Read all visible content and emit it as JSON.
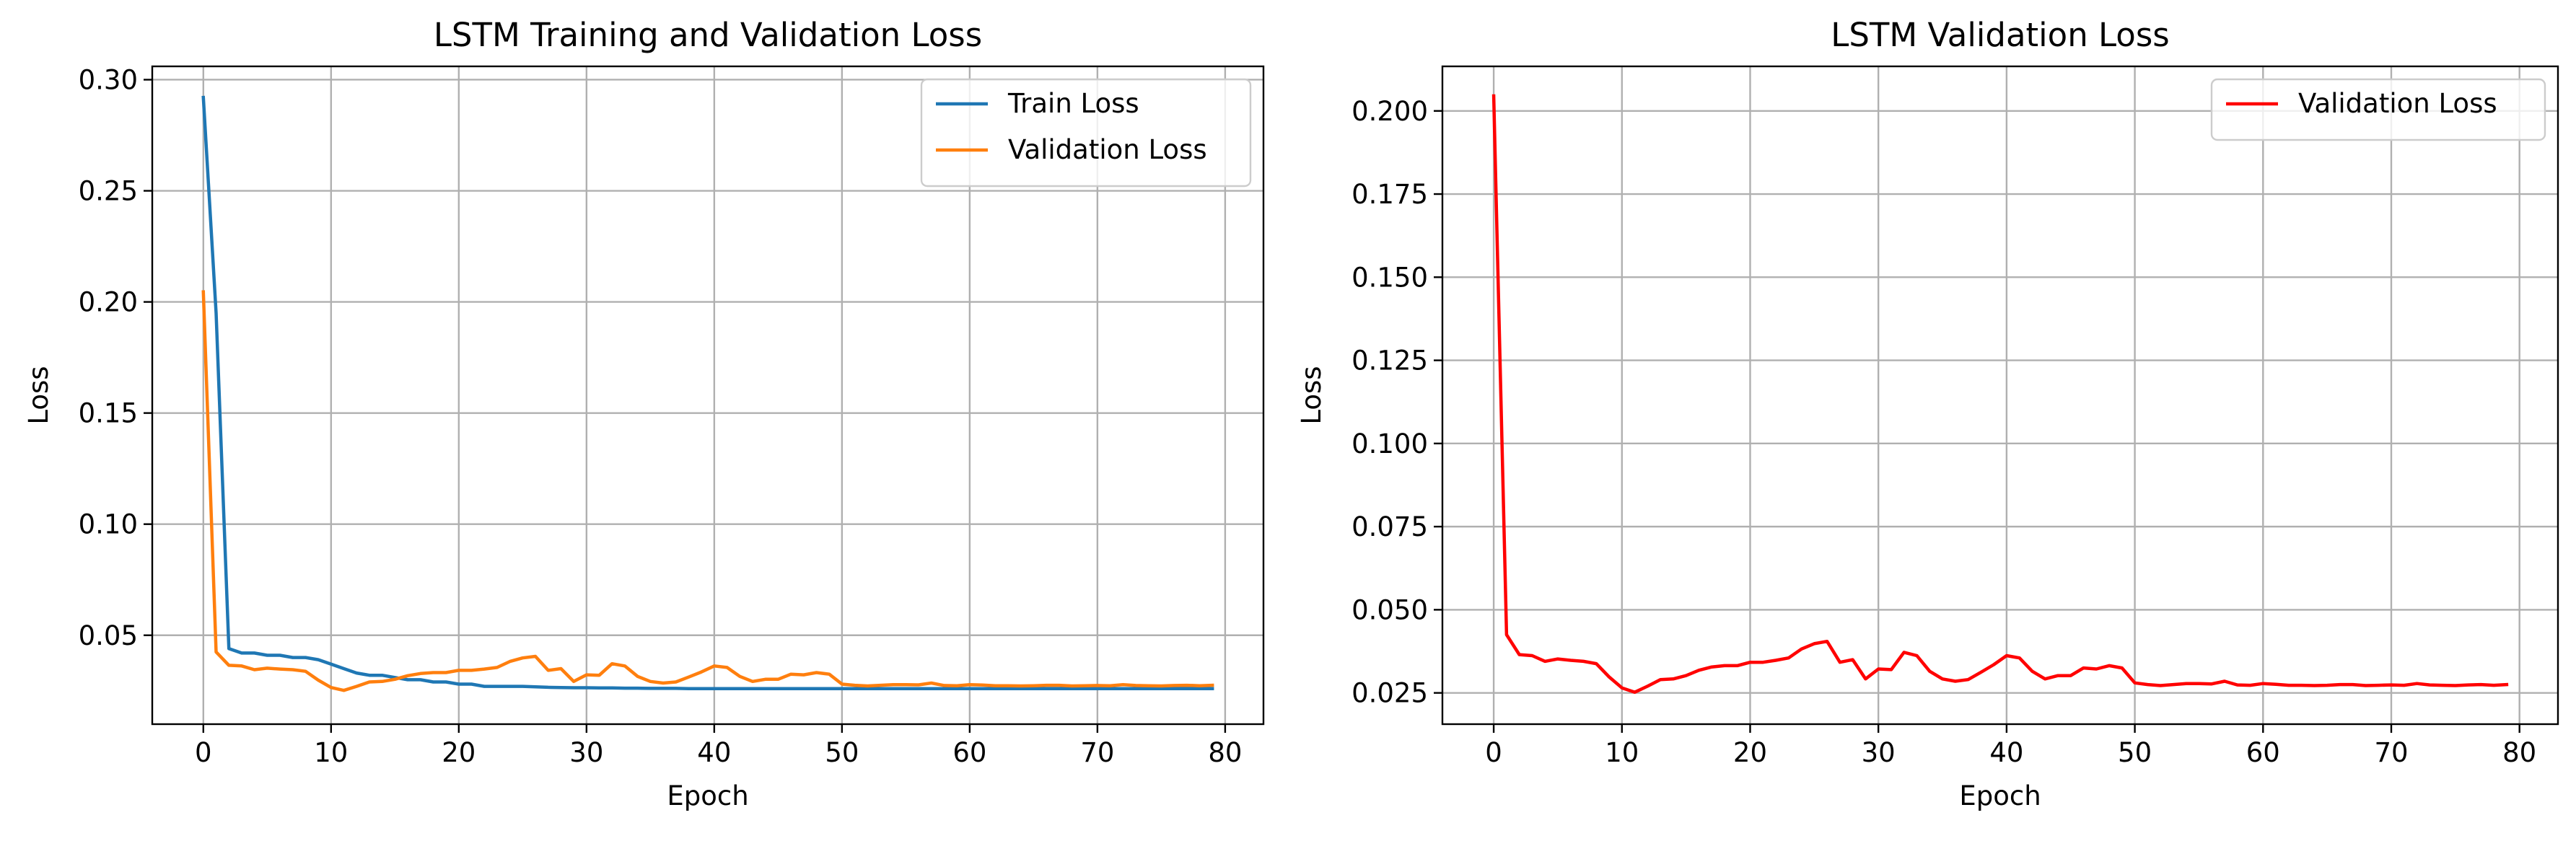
{
  "chart_data": [
    {
      "type": "line",
      "title": "LSTM Training and Validation Loss",
      "xlabel": "Epoch",
      "ylabel": "Loss",
      "xlim": [
        -4,
        83
      ],
      "ylim": [
        0.01,
        0.306
      ],
      "xticks": [
        0,
        10,
        20,
        30,
        40,
        50,
        60,
        70,
        80
      ],
      "yticks": [
        0.05,
        0.1,
        0.15,
        0.2,
        0.25,
        0.3
      ],
      "ytick_labels": [
        "0.05",
        "0.10",
        "0.15",
        "0.20",
        "0.25",
        "0.30"
      ],
      "grid": true,
      "legend_position": "top-right",
      "series": [
        {
          "name": "Train Loss",
          "color": "#1f77b4",
          "values": [
            0.292,
            0.195,
            0.044,
            0.042,
            0.042,
            0.041,
            0.041,
            0.04,
            0.04,
            0.039,
            0.037,
            0.035,
            0.033,
            0.032,
            0.032,
            0.031,
            0.03,
            0.03,
            0.029,
            0.029,
            0.028,
            0.028,
            0.027,
            0.027,
            0.027,
            0.027,
            0.0268,
            0.0266,
            0.0265,
            0.0264,
            0.0264,
            0.0263,
            0.0263,
            0.0262,
            0.0262,
            0.0261,
            0.0261,
            0.0261,
            0.026,
            0.026,
            0.026,
            0.026,
            0.026,
            0.026,
            0.026,
            0.026,
            0.026,
            0.026,
            0.026,
            0.026,
            0.026,
            0.026,
            0.026,
            0.026,
            0.026,
            0.026,
            0.026,
            0.026,
            0.026,
            0.026,
            0.026,
            0.026,
            0.026,
            0.026,
            0.026,
            0.026,
            0.026,
            0.026,
            0.026,
            0.026,
            0.026,
            0.026,
            0.026,
            0.026,
            0.026,
            0.026,
            0.026,
            0.026,
            0.026,
            0.026
          ]
        },
        {
          "name": "Validation Loss",
          "color": "#ff7f0e",
          "values": [
            0.2045,
            0.0425,
            0.0365,
            0.0362,
            0.0345,
            0.0352,
            0.0348,
            0.0345,
            0.0338,
            0.0298,
            0.0265,
            0.0252,
            0.027,
            0.029,
            0.0292,
            0.0302,
            0.0318,
            0.0328,
            0.0332,
            0.0332,
            0.0342,
            0.0342,
            0.0348,
            0.0355,
            0.0382,
            0.0398,
            0.0405,
            0.0342,
            0.035,
            0.0292,
            0.0322,
            0.032,
            0.0372,
            0.0362,
            0.0315,
            0.0292,
            0.0285,
            0.029,
            0.0312,
            0.0335,
            0.0362,
            0.0355,
            0.0315,
            0.0292,
            0.0302,
            0.0302,
            0.0325,
            0.0322,
            0.0332,
            0.0325,
            0.028,
            0.0275,
            0.0272,
            0.0275,
            0.0278,
            0.0278,
            0.0277,
            0.0285,
            0.0274,
            0.0273,
            0.0278,
            0.0276,
            0.0273,
            0.0273,
            0.0272,
            0.0273,
            0.0275,
            0.0275,
            0.0272,
            0.0273,
            0.0274,
            0.0273,
            0.0278,
            0.0274,
            0.0273,
            0.0272,
            0.0274,
            0.0275,
            0.0273,
            0.0275
          ]
        }
      ]
    },
    {
      "type": "line",
      "title": "LSTM Validation Loss",
      "xlabel": "Epoch",
      "ylabel": "Loss",
      "xlim": [
        -4,
        83
      ],
      "ylim": [
        0.0156,
        0.2134
      ],
      "xticks": [
        0,
        10,
        20,
        30,
        40,
        50,
        60,
        70,
        80
      ],
      "yticks": [
        0.025,
        0.05,
        0.075,
        0.1,
        0.125,
        0.15,
        0.175,
        0.2
      ],
      "ytick_labels": [
        "0.025",
        "0.050",
        "0.075",
        "0.100",
        "0.125",
        "0.150",
        "0.175",
        "0.200"
      ],
      "grid": true,
      "legend_position": "top-right",
      "series": [
        {
          "name": "Validation Loss",
          "color": "#ff0000",
          "values": [
            0.2045,
            0.0425,
            0.0365,
            0.0362,
            0.0345,
            0.0352,
            0.0348,
            0.0345,
            0.0338,
            0.0298,
            0.0265,
            0.0252,
            0.027,
            0.029,
            0.0292,
            0.0302,
            0.0318,
            0.0328,
            0.0332,
            0.0332,
            0.0342,
            0.0342,
            0.0348,
            0.0355,
            0.0382,
            0.0398,
            0.0405,
            0.0342,
            0.035,
            0.0292,
            0.0322,
            0.032,
            0.0372,
            0.0362,
            0.0315,
            0.0292,
            0.0285,
            0.029,
            0.0312,
            0.0335,
            0.0362,
            0.0355,
            0.0315,
            0.0292,
            0.0302,
            0.0302,
            0.0325,
            0.0322,
            0.0332,
            0.0325,
            0.028,
            0.0275,
            0.0272,
            0.0275,
            0.0278,
            0.0278,
            0.0277,
            0.0285,
            0.0274,
            0.0273,
            0.0278,
            0.0276,
            0.0273,
            0.0273,
            0.0272,
            0.0273,
            0.0275,
            0.0275,
            0.0272,
            0.0273,
            0.0274,
            0.0273,
            0.0278,
            0.0274,
            0.0273,
            0.0272,
            0.0274,
            0.0275,
            0.0273,
            0.0275
          ]
        }
      ]
    }
  ]
}
